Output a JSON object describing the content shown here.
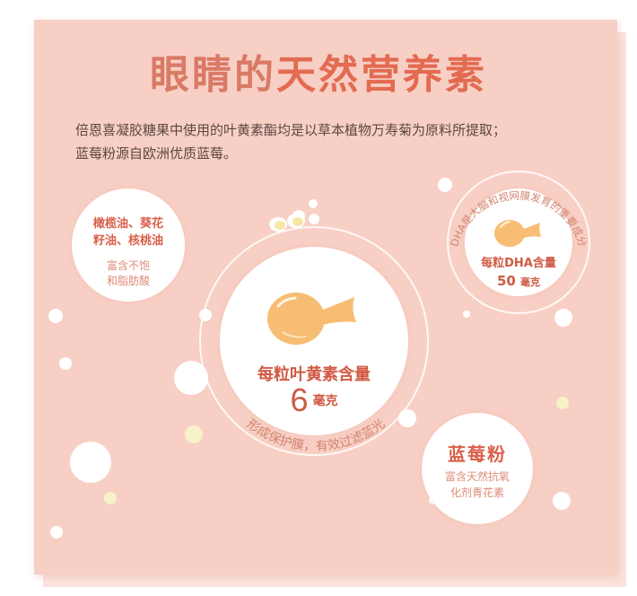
{
  "title": {
    "plain": "眼睛的",
    "accent": "天然营养素"
  },
  "description": [
    "倍恩喜凝胶糖果中使用的叶黄素酯均是以草本植物万寿菊为原料所提取；",
    "蓝莓粉源自欧洲优质蓝莓。"
  ],
  "oil_circle": {
    "title_lines": [
      "橄榄油、葵花",
      "籽油、核桃油"
    ],
    "sub_lines": [
      "富含不饱",
      "和脂肪酸"
    ]
  },
  "main_circle": {
    "icon": "softgel-capsule-icon",
    "label": "每粒叶黄素含量",
    "amount": "6",
    "unit": "毫克",
    "arc_text": "形成保护膜，有效过滤蓝光"
  },
  "dha_circle": {
    "icon": "softgel-capsule-icon",
    "label": "每粒DHA含量",
    "amount": "50",
    "unit": "毫克",
    "arc_text": "DHA是大脑和视网膜发育的重要成分"
  },
  "berry_circle": {
    "title": "蓝莓粉",
    "sub_lines": [
      "富含天然抗氧",
      "化剂青花素"
    ]
  },
  "colors": {
    "card": "#f8cfc4",
    "accent": "#e36b52",
    "title": "#d97a66",
    "capsule": "#f7bd72",
    "text": "#5c4842"
  }
}
